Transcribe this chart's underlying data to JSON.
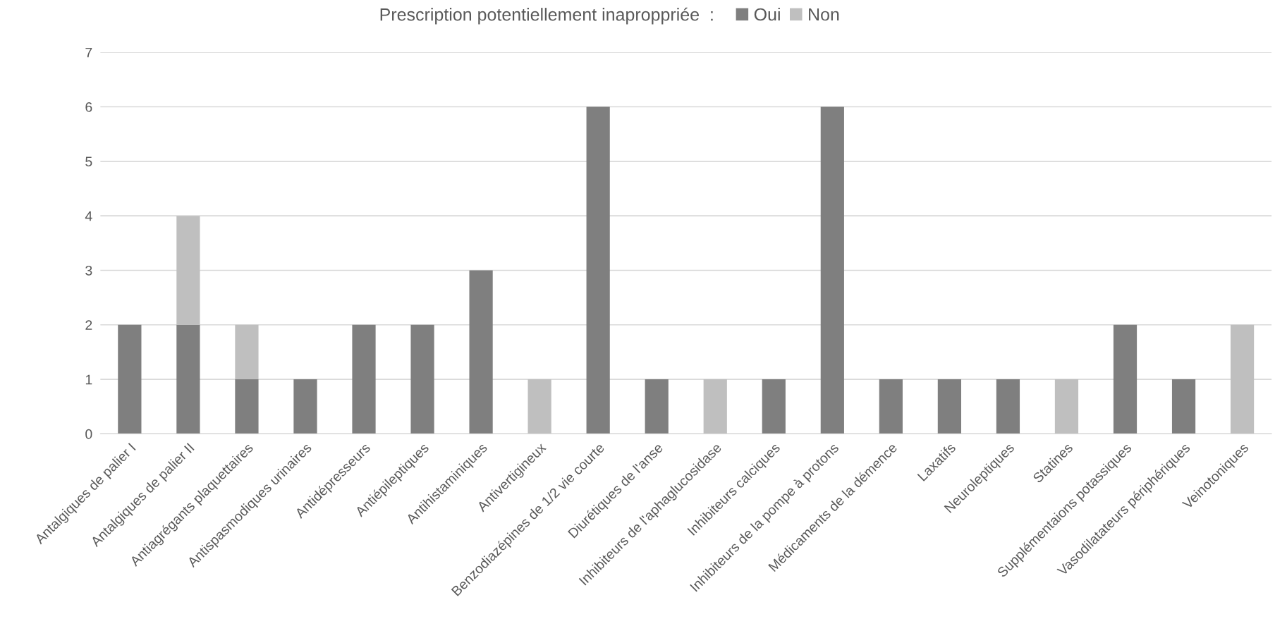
{
  "chart_data": {
    "type": "bar",
    "stacked": true,
    "legend_title": "Prescription potentiellement inaproppriée  :",
    "categories": [
      "Antalgiques de palier I",
      "Antalgiques de palier II",
      "Antiagrégants plaquettaires",
      "Antispasmodiques urinaires",
      "Antidépresseurs",
      "Antiépileptiques",
      "Antihistaminiques",
      "Antivertigineux",
      "Benzodiazépines de 1/2 vie courte",
      "Diurétiques de l'anse",
      "Inhibiteurs de l'aphaglucosidase",
      "Inhibiteurs calciques",
      "Inhibiteurs de la pompe à protons",
      "Médicaments de la démence",
      "Laxatifs",
      "Neuroleptiques",
      "Statines",
      "Supplémentaions potassiques",
      "Vasodilatateurs périphériques",
      "Veinotoniques"
    ],
    "series": [
      {
        "name": "Oui",
        "color": "#7f7f7f",
        "values": [
          2,
          2,
          1,
          1,
          2,
          2,
          3,
          0,
          6,
          1,
          0,
          1,
          6,
          1,
          1,
          1,
          0,
          2,
          1,
          0
        ]
      },
      {
        "name": "Non",
        "color": "#bfbfbf",
        "values": [
          0,
          2,
          1,
          0,
          0,
          0,
          0,
          1,
          0,
          0,
          1,
          0,
          0,
          0,
          0,
          0,
          1,
          0,
          0,
          2
        ]
      }
    ],
    "ylim": [
      0,
      7
    ],
    "yticks": [
      0,
      1,
      2,
      3,
      4,
      5,
      6,
      7
    ],
    "grid": "y",
    "legend": "top"
  }
}
